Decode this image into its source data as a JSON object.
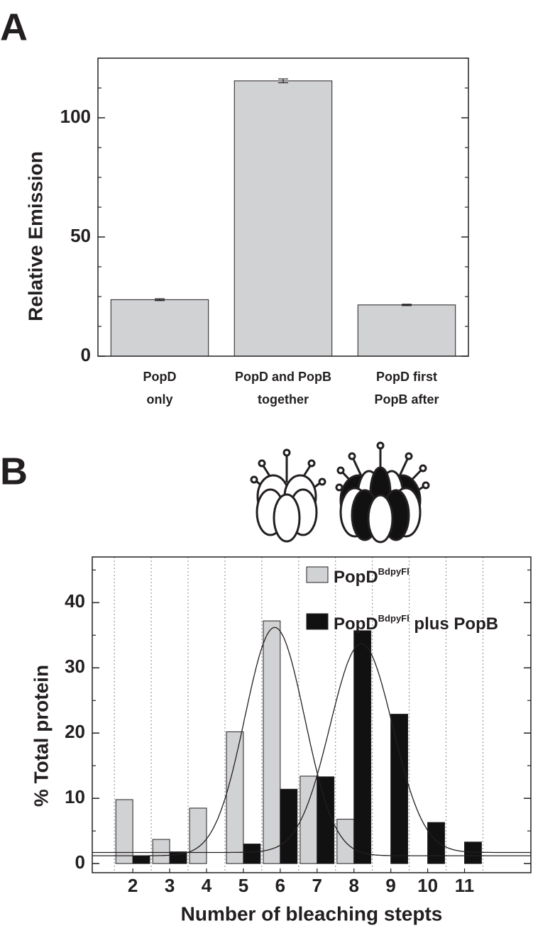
{
  "chart_data": [
    {
      "type": "bar",
      "panel_label": "A",
      "ylabel": "Relative Emission",
      "categories": [
        [
          "PopD",
          "only"
        ],
        [
          "PopD and PopB",
          "together"
        ],
        [
          "PopD first",
          "PopB after"
        ]
      ],
      "values": [
        23.7,
        115.5,
        21.5
      ],
      "errors": [
        0.4,
        0.8,
        0.3
      ],
      "color": "#d1d2d4",
      "ylim": [
        0,
        125
      ],
      "yticks": [
        0,
        50,
        100
      ],
      "minor_yticks": [
        12.5,
        25,
        37.5,
        62.5,
        75,
        87.5,
        112.5,
        125
      ]
    },
    {
      "type": "grouped_bar",
      "panel_label": "B",
      "xlabel": "Number of bleaching stepts",
      "ylabel": "% Total protein",
      "x": [
        2,
        3,
        4,
        5,
        6,
        7,
        8,
        9,
        10,
        11
      ],
      "xlim": [
        0.9,
        12.8
      ],
      "xticks": [
        2,
        3,
        4,
        5,
        6,
        7,
        8,
        9,
        10,
        11
      ],
      "ylim": [
        -1.4,
        47
      ],
      "yticks": [
        0,
        10,
        20,
        30,
        40
      ],
      "minor_yticks": [
        5,
        15,
        25,
        35,
        45
      ],
      "grid": "x-dotted",
      "legend": "upper right",
      "series": [
        {
          "name": "PopD",
          "name_superscript": "BdpyFl",
          "color": "#d1d2d4",
          "values": [
            9.8,
            3.7,
            8.5,
            20.2,
            37.2,
            13.4,
            6.8,
            null,
            null,
            null
          ]
        },
        {
          "name": "PopD",
          "name_superscript": "BdpyFl",
          "name_suffix": " plus PopB",
          "color": "#111111",
          "values": [
            1.2,
            1.8,
            null,
            3.0,
            11.4,
            13.3,
            35.7,
            22.9,
            6.3,
            3.3
          ]
        }
      ],
      "fits": [
        {
          "center": 5.85,
          "amplitude": 35,
          "sigma": 0.81,
          "offset": 1.2
        },
        {
          "center": 8.2,
          "amplitude": 32,
          "sigma": 0.85,
          "offset": 1.7
        }
      ]
    }
  ]
}
